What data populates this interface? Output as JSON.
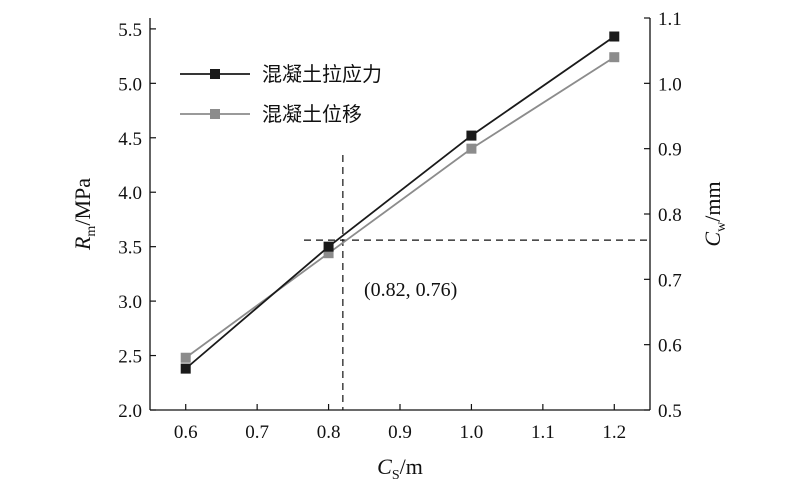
{
  "chart_data": {
    "type": "line",
    "x": [
      0.6,
      0.8,
      1.0,
      1.2
    ],
    "xlim": [
      0.55,
      1.25
    ],
    "x_ticks": [
      "0.6",
      "0.7",
      "0.8",
      "0.9",
      "1.0",
      "1.1",
      "1.2"
    ],
    "xlabel": {
      "main": "C",
      "sub": "S",
      "unit": "/m"
    },
    "left_axis": {
      "label": {
        "main": "R",
        "sub": "m",
        "unit": "/MPa"
      },
      "ylim": [
        2.0,
        5.6
      ],
      "ticks": [
        "2.0",
        "2.5",
        "3.0",
        "3.5",
        "4.0",
        "4.5",
        "5.0",
        "5.5"
      ]
    },
    "right_axis": {
      "label": {
        "main": "C",
        "sub": "w",
        "unit": "/mm"
      },
      "ylim": [
        0.5,
        1.1
      ],
      "ticks": [
        "0.5",
        "0.6",
        "0.7",
        "0.8",
        "0.9",
        "1.0",
        "1.1"
      ]
    },
    "series": [
      {
        "name": "混凝土拉应力",
        "axis": "left",
        "color": "#1a1a1a",
        "marker": "square",
        "values": [
          2.38,
          3.5,
          4.52,
          5.43
        ]
      },
      {
        "name": "混凝土位移",
        "axis": "right",
        "color": "#8c8c8c",
        "marker": "square",
        "values": [
          0.58,
          0.74,
          0.9,
          1.04
        ]
      }
    ],
    "annotation": {
      "text": "(0.82, 0.76)",
      "point": {
        "x": 0.82,
        "y_right": 0.76
      }
    },
    "legend_position": "top-left",
    "grid": false
  }
}
